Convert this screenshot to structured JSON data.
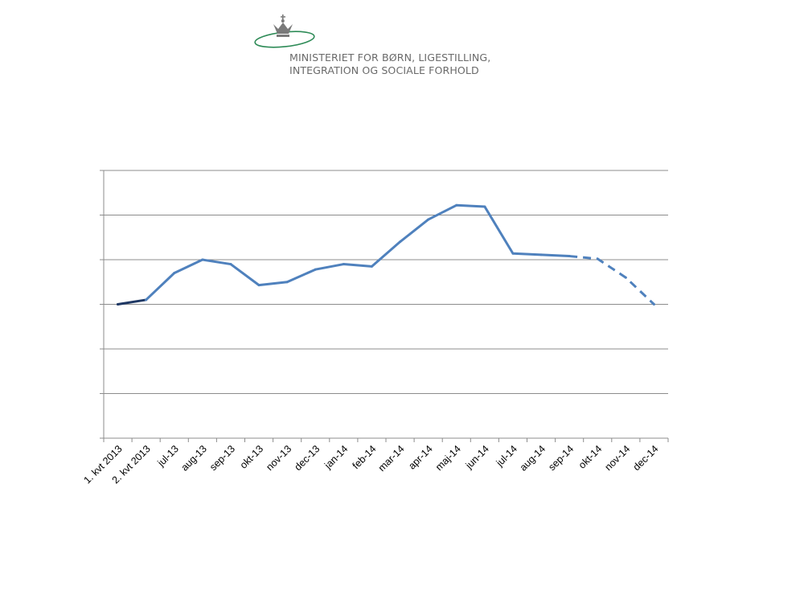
{
  "logo": {
    "line1": "MINISTERIET FOR BØRN, LIGESTILLING,",
    "line2": "INTEGRATION OG SOCIALE FORHOLD",
    "icon": "crown-icon"
  },
  "colors": {
    "series": "#4F81BD",
    "series_start": "#1F3864",
    "grid": "#8C8C8C",
    "logo_ellipse": "#2E8B57",
    "text": "#000000"
  },
  "chart_data": {
    "type": "line",
    "title": "",
    "xlabel": "",
    "ylabel": "",
    "ylim": [
      0,
      6
    ],
    "grid": true,
    "legend": "none",
    "y_axis_labels_shown": false,
    "categories": [
      "1. kvt 2013",
      "2. kvt 2013",
      "jul-13",
      "aug-13",
      "sep-13",
      "okt-13",
      "nov-13",
      "dec-13",
      "jan-14",
      "feb-14",
      "mar-14",
      "apr-14",
      "maj-14",
      "jun-14",
      "jul-14",
      "aug-14",
      "sep-14",
      "okt-14",
      "nov-14",
      "dec-14"
    ],
    "series": [
      {
        "values": [
          3.0,
          3.1,
          3.7,
          4.0,
          3.9,
          3.43,
          3.5,
          3.78,
          3.9,
          3.85,
          4.4,
          4.9,
          5.22,
          5.19,
          4.14,
          4.11,
          4.08,
          4.02,
          3.6,
          3.0
        ],
        "projected_from_index": 16
      }
    ]
  }
}
